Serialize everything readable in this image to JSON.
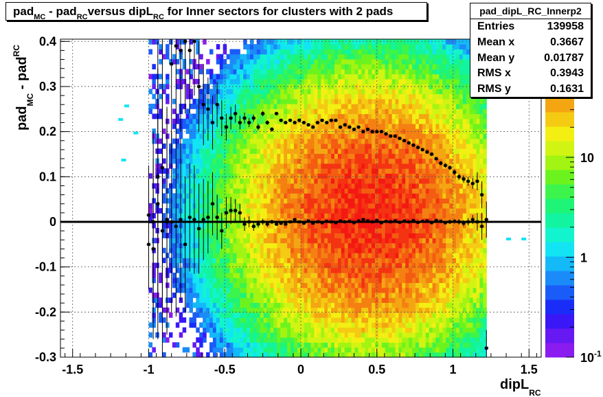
{
  "title": {
    "parts": [
      {
        "t": "pad"
      },
      {
        "t": "MC",
        "sub": true
      },
      {
        "t": " - pad"
      },
      {
        "t": "RC",
        "sub": true
      },
      {
        "t": "versus dipL"
      },
      {
        "t": "RC",
        "sub": true
      },
      {
        "t": " for Inner sectors for clusters with 2 pads"
      }
    ]
  },
  "stats": {
    "name": "pad_dipL_RC_Innerp2",
    "rows": [
      {
        "label": "Entries",
        "value": "139958"
      },
      {
        "label": "Mean x",
        "value": "0.3667"
      },
      {
        "label": "Mean y",
        "value": "0.01787"
      },
      {
        "label": "RMS x",
        "value": "0.3943"
      },
      {
        "label": "RMS y",
        "value": "0.1631"
      }
    ]
  },
  "colors": {
    "axis": "#000000",
    "palette": [
      "#8a1cf0",
      "#6619f3",
      "#3a17f6",
      "#1a2df8",
      "#1a5cf8",
      "#1a8bf8",
      "#14b9f8",
      "#12e4f4",
      "#12f4cd",
      "#12f49f",
      "#1ef476",
      "#3cf44c",
      "#6cf31e",
      "#a2f412",
      "#d2f412",
      "#f4ef12",
      "#f4cb12",
      "#f4a612",
      "#f48012",
      "#f45c12",
      "#f43312",
      "#f41812"
    ]
  },
  "chart_data": {
    "type": "heatmap",
    "xlabel": {
      "main": "dipL",
      "sub": "RC"
    },
    "ylabel": {
      "main": "pad",
      "sub1": "MC",
      "mid": " - pad",
      "sub2": "RC"
    },
    "xlim": [
      -1.58,
      1.58
    ],
    "ylim": [
      -0.3,
      0.405
    ],
    "xticks": [
      -1.5,
      -1,
      -0.5,
      0,
      0.5,
      1,
      1.5
    ],
    "xtick_labels": [
      "-1.5",
      "-1",
      "-0.5",
      "0",
      "0.5",
      "1",
      "1.5"
    ],
    "yticks": [
      -0.3,
      -0.2,
      -0.1,
      0,
      0.1,
      0.2,
      0.3,
      0.4
    ],
    "ytick_labels": [
      "-0.3",
      "-0.2",
      "-0.1",
      "0",
      "0.1",
      "0.2",
      "0.3",
      "0.4"
    ],
    "grid": true,
    "zscale": "log",
    "zlim": [
      0.1,
      150
    ],
    "z_ticks": [
      0.1,
      1,
      10
    ],
    "z_tick_labels": [
      {
        "base": "10",
        "exp": "-1"
      },
      {
        "base": "1",
        "exp": ""
      },
      {
        "base": "10",
        "exp": ""
      }
    ],
    "density": {
      "center_x": 0.45,
      "center_y": 0.02,
      "sigma_x": 0.4,
      "sigma_y": 0.14,
      "x_range": [
        -1.0,
        1.22
      ],
      "peak": 110
    },
    "profile_mean": {
      "x": [
        -1.0,
        -0.97,
        -0.94,
        -0.91,
        -0.88,
        -0.85,
        -0.82,
        -0.79,
        -0.76,
        -0.73,
        -0.7,
        -0.67,
        -0.64,
        -0.61,
        -0.58,
        -0.55,
        -0.52,
        -0.49,
        -0.46,
        -0.43,
        -0.4,
        -0.37,
        -0.34,
        -0.31,
        -0.28,
        -0.25,
        -0.22,
        -0.19,
        -0.16,
        -0.13,
        -0.1,
        -0.07,
        -0.04,
        -0.01,
        0.02,
        0.05,
        0.08,
        0.11,
        0.14,
        0.17,
        0.2,
        0.23,
        0.26,
        0.29,
        0.32,
        0.35,
        0.38,
        0.41,
        0.44,
        0.47,
        0.5,
        0.53,
        0.56,
        0.59,
        0.62,
        0.65,
        0.68,
        0.71,
        0.74,
        0.77,
        0.8,
        0.83,
        0.86,
        0.89,
        0.92,
        0.95,
        0.98,
        1.01,
        1.04,
        1.07,
        1.1,
        1.13,
        1.16,
        1.19,
        1.22
      ],
      "y": [
        0.015,
        -0.06,
        0.04,
        -0.02,
        0.005,
        0.0,
        -0.01,
        0.005,
        -0.05,
        0.01,
        0.005,
        -0.015,
        0.005,
        0.01,
        0.04,
        0.01,
        -0.02,
        0.02,
        0.025,
        0.025,
        0.02,
        -0.005,
        0.0,
        -0.01,
        -0.005,
        0.0,
        -0.005,
        0.0,
        -0.005,
        -0.003,
        -0.005,
        0.0,
        0.005,
        0.0,
        -0.003,
        0.002,
        -0.003,
        0.0,
        -0.002,
        0.001,
        0.0,
        -0.002,
        0.002,
        0.0,
        0.001,
        -0.002,
        0.002,
        0.005,
        0.002,
        0.0,
        0.003,
        -0.002,
        0.001,
        0.0,
        0.002,
        -0.001,
        0.002,
        0.0,
        0.003,
        -0.001,
        0.001,
        0.002,
        -0.002,
        0.003,
        0.001,
        -0.002,
        0.0,
        0.001,
        0.0,
        -0.003,
        0.0,
        0.005,
        0.0,
        -0.01,
        0.005
      ],
      "err": [
        0.11,
        0.2,
        0.3,
        0.3,
        0.25,
        0.2,
        0.2,
        0.18,
        0.15,
        0.12,
        0.12,
        0.1,
        0.09,
        0.08,
        0.07,
        0.05,
        0.04,
        0.035,
        0.03,
        0.025,
        0.02,
        0.015,
        0.012,
        0.01,
        0.008,
        0.007,
        0.006,
        0.005,
        0.004,
        0.004,
        0.003,
        0.003,
        0.003,
        0.003,
        0.003,
        0.003,
        0.003,
        0.003,
        0.003,
        0.003,
        0.003,
        0.003,
        0.003,
        0.003,
        0.003,
        0.003,
        0.003,
        0.003,
        0.003,
        0.003,
        0.003,
        0.003,
        0.003,
        0.003,
        0.003,
        0.003,
        0.003,
        0.003,
        0.003,
        0.003,
        0.003,
        0.003,
        0.003,
        0.004,
        0.004,
        0.004,
        0.005,
        0.005,
        0.006,
        0.007,
        0.008,
        0.01,
        0.02,
        0.03,
        0.04
      ]
    },
    "profile_rms": {
      "x": [
        -1.0,
        -0.97,
        -0.94,
        -0.91,
        -0.88,
        -0.85,
        -0.82,
        -0.79,
        -0.76,
        -0.73,
        -0.7,
        -0.67,
        -0.64,
        -0.61,
        -0.58,
        -0.55,
        -0.52,
        -0.49,
        -0.46,
        -0.43,
        -0.4,
        -0.37,
        -0.34,
        -0.31,
        -0.28,
        -0.25,
        -0.22,
        -0.19,
        -0.16,
        -0.13,
        -0.1,
        -0.07,
        -0.04,
        -0.01,
        0.02,
        0.05,
        0.08,
        0.11,
        0.14,
        0.17,
        0.2,
        0.23,
        0.26,
        0.29,
        0.32,
        0.35,
        0.38,
        0.41,
        0.44,
        0.47,
        0.5,
        0.53,
        0.56,
        0.59,
        0.62,
        0.65,
        0.68,
        0.71,
        0.74,
        0.77,
        0.8,
        0.83,
        0.86,
        0.89,
        0.92,
        0.95,
        0.98,
        1.01,
        1.04,
        1.07,
        1.1,
        1.13,
        1.16,
        1.19,
        1.22
      ],
      "y": [
        -0.05,
        0.0,
        0.1,
        0.12,
        0.0,
        0.35,
        0.39,
        0.38,
        0.4,
        0.38,
        0.4,
        0.3,
        0.26,
        0.25,
        0.22,
        0.26,
        0.23,
        0.21,
        0.23,
        0.24,
        0.22,
        0.23,
        0.22,
        0.23,
        0.21,
        0.24,
        0.22,
        0.205,
        0.24,
        0.225,
        0.22,
        0.225,
        0.22,
        0.225,
        0.22,
        0.215,
        0.21,
        0.22,
        0.225,
        0.22,
        0.225,
        0.225,
        0.21,
        0.215,
        0.21,
        0.205,
        0.21,
        0.2,
        0.205,
        0.2,
        0.2,
        0.2,
        0.195,
        0.19,
        0.19,
        0.185,
        0.18,
        0.175,
        0.17,
        0.165,
        0.16,
        0.155,
        0.15,
        0.14,
        0.13,
        0.125,
        0.12,
        0.11,
        0.1,
        0.095,
        0.09,
        0.085,
        0.09,
        0.06,
        -0.28
      ],
      "err": [
        0.1,
        0.2,
        0.3,
        0.3,
        0.25,
        0.2,
        0.2,
        0.18,
        0.16,
        0.14,
        0.12,
        0.1,
        0.09,
        0.07,
        0.06,
        0.05,
        0.04,
        0.03,
        0.025,
        0.02,
        0.015,
        0.012,
        0.01,
        0.008,
        0.007,
        0.006,
        0.005,
        0.005,
        0.004,
        0.004,
        0.004,
        0.004,
        0.004,
        0.004,
        0.004,
        0.004,
        0.004,
        0.004,
        0.004,
        0.004,
        0.004,
        0.004,
        0.004,
        0.004,
        0.004,
        0.004,
        0.004,
        0.004,
        0.004,
        0.004,
        0.004,
        0.004,
        0.004,
        0.004,
        0.004,
        0.004,
        0.004,
        0.004,
        0.004,
        0.004,
        0.004,
        0.004,
        0.004,
        0.004,
        0.005,
        0.005,
        0.005,
        0.006,
        0.007,
        0.008,
        0.01,
        0.012,
        0.02,
        0.03,
        0.04
      ]
    },
    "zero_line": 0
  }
}
